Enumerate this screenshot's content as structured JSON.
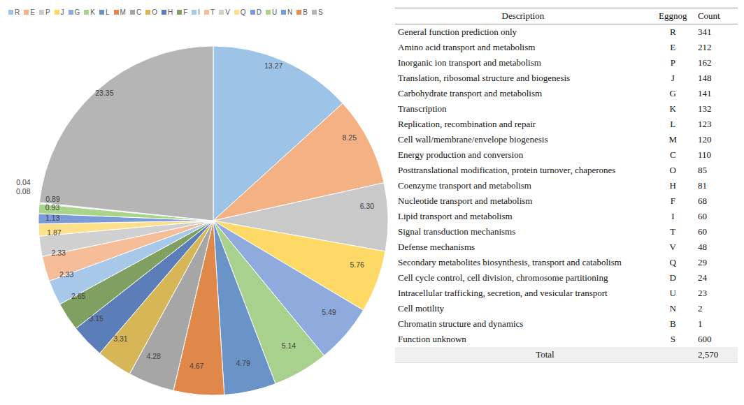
{
  "chart_data": {
    "type": "pie",
    "categories": [
      "R",
      "E",
      "P",
      "J",
      "G",
      "K",
      "L",
      "M",
      "C",
      "O",
      "H",
      "F",
      "I",
      "T",
      "V",
      "Q",
      "D",
      "U",
      "N",
      "B",
      "S"
    ],
    "values": [
      13.27,
      8.25,
      6.3,
      5.76,
      5.49,
      5.14,
      4.79,
      4.67,
      4.28,
      3.31,
      3.15,
      2.65,
      2.33,
      2.33,
      1.87,
      1.13,
      0.93,
      0.89,
      0.08,
      0.04,
      23.35
    ],
    "value_labels": [
      "13.27",
      "8.25",
      "6.30",
      "5.76",
      "5.49",
      "5.14",
      "4.79",
      "4.67",
      "4.28",
      "3.31",
      "3.15",
      "2.65",
      "2.33",
      "2.33",
      "1.87",
      "1.13",
      "0.93",
      "0.89",
      "0.08",
      "0.04",
      "23.35"
    ],
    "colors": [
      "#9DC3E6",
      "#F4B183",
      "#C9C9C9",
      "#FFD966",
      "#8FAADC",
      "#A9D18E",
      "#6A93C7",
      "#E0884A",
      "#A6A6A6",
      "#D6B656",
      "#5B7DB8",
      "#7FA060",
      "#A8C8EA",
      "#F6BE98",
      "#D0D0D0",
      "#FFE08A",
      "#7B9BD8",
      "#A9D48A",
      "#6FA0D8",
      "#E58C4C",
      "#B5B5B5"
    ],
    "legend": "top",
    "data_labels": true
  },
  "table": {
    "columns": [
      "Description",
      "Eggnog",
      "Count"
    ],
    "rows": [
      [
        "General function prediction only",
        "R",
        341
      ],
      [
        "Amino acid transport and metabolism",
        "E",
        212
      ],
      [
        "Inorganic ion transport and metabolism",
        "P",
        162
      ],
      [
        "Translation, ribosomal structure and biogenesis",
        "J",
        148
      ],
      [
        "Carbohydrate transport and metabolism",
        "G",
        141
      ],
      [
        "Transcription",
        "K",
        132
      ],
      [
        "Replication, recombination and repair",
        "L",
        123
      ],
      [
        "Cell wall/membrane/envelope biogenesis",
        "M",
        120
      ],
      [
        "Energy production and conversion",
        "C",
        110
      ],
      [
        "Posttranslational modification, protein turnover, chaperones",
        "O",
        85
      ],
      [
        "Coenzyme transport and metabolism",
        "H",
        81
      ],
      [
        "Nucleotide transport and metabolism",
        "F",
        68
      ],
      [
        "Lipid transport and metabolism",
        "I",
        60
      ],
      [
        "Signal transduction mechanisms",
        "T",
        60
      ],
      [
        "Defense mechanisms",
        "V",
        48
      ],
      [
        "Secondary metabolites biosynthesis, transport and catabolism",
        "Q",
        29
      ],
      [
        "Cell cycle control, cell division, chromosome partitioning",
        "D",
        24
      ],
      [
        "Intracellular trafficking, secretion, and vesicular transport",
        "U",
        23
      ],
      [
        "Cell motility",
        "N",
        2
      ],
      [
        "Chromatin structure and dynamics",
        "B",
        1
      ],
      [
        "Function unknown",
        "S",
        600
      ]
    ],
    "total": {
      "label": "Total",
      "count": "2,570"
    }
  }
}
